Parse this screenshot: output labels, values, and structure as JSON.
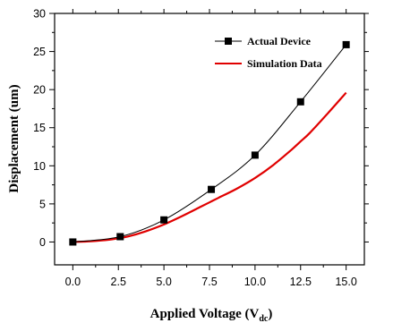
{
  "chart_data": {
    "type": "line",
    "title": "",
    "xlabel": "Applied Voltage (V",
    "xlabel_sub": "dc",
    "xlabel_close": ")",
    "ylabel": "Displacement (um)",
    "xlim": [
      -1,
      16
    ],
    "ylim": [
      -3,
      30
    ],
    "xticks": [
      0.0,
      2.5,
      5.0,
      7.5,
      10.0,
      12.5,
      15.0
    ],
    "xtick_labels": [
      "0.0",
      "2.5",
      "5.0",
      "7.5",
      "10.0",
      "12.5",
      "15.0"
    ],
    "yticks": [
      0,
      5,
      10,
      15,
      20,
      25,
      30
    ],
    "ytick_labels": [
      "0",
      "5",
      "10",
      "15",
      "20",
      "25",
      "30"
    ],
    "grid": false,
    "legend_position": "top-right",
    "series": [
      {
        "name": "Actual Device",
        "color": "#000000",
        "marker": "square",
        "x": [
          0.0,
          2.6,
          5.0,
          7.6,
          10.0,
          12.5,
          15.0
        ],
        "values": [
          0.0,
          0.7,
          2.9,
          6.9,
          11.4,
          18.4,
          25.9
        ]
      },
      {
        "name": "Simulation Data",
        "color": "#e00000",
        "marker": "none",
        "x": [
          0.0,
          1.0,
          2.0,
          2.5,
          3.0,
          4.0,
          5.0,
          6.0,
          7.0,
          7.5,
          8.0,
          9.0,
          10.0,
          11.0,
          12.0,
          12.5,
          13.0,
          14.0,
          15.0
        ],
        "values": [
          0.0,
          0.1,
          0.3,
          0.5,
          0.7,
          1.4,
          2.3,
          3.4,
          4.6,
          5.2,
          5.8,
          7.0,
          8.4,
          10.1,
          12.1,
          13.2,
          14.3,
          16.9,
          19.6
        ]
      }
    ]
  }
}
